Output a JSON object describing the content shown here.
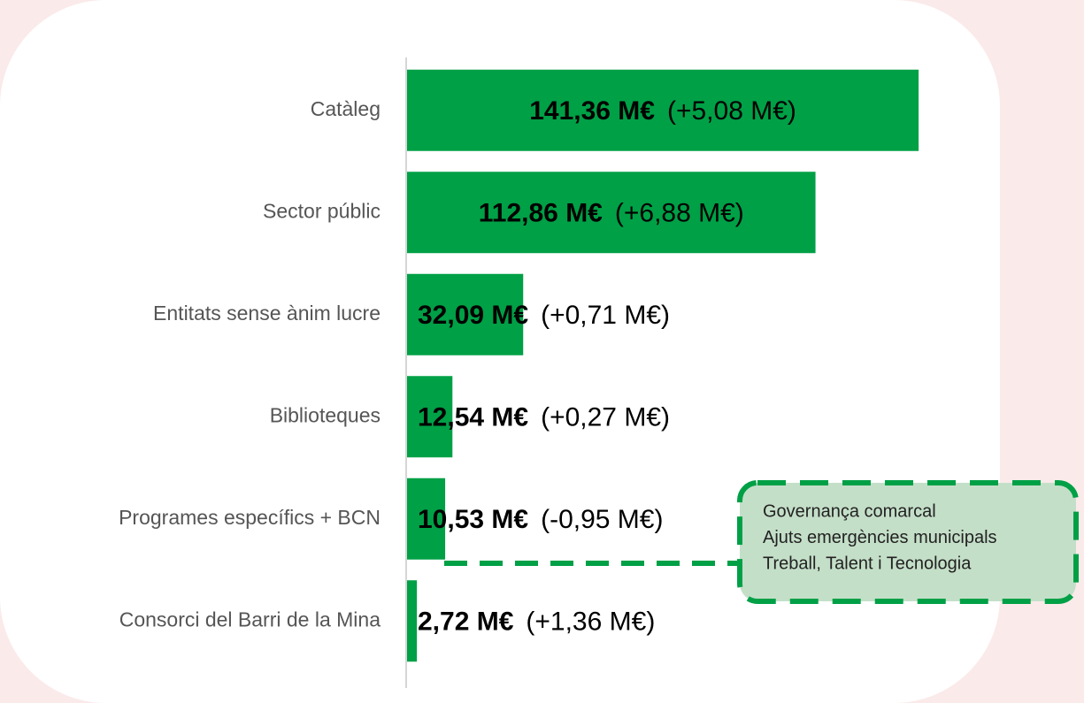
{
  "chart_data": {
    "type": "barh",
    "categories": [
      "Catàleg",
      "Sector públic",
      "Entitats sense ànim lucre",
      "Biblioteques",
      "Programes específics + BCN",
      "Consorci del Barri de la Mina"
    ],
    "values": [
      141.36,
      112.86,
      32.09,
      12.54,
      10.53,
      2.72
    ],
    "value_labels": [
      "141,36 M€",
      "112,86 M€",
      "32,09 M€",
      "12,54 M€",
      "10,53 M€",
      "2,72 M€"
    ],
    "change_labels": [
      "(+5,08 M€)",
      "(+6,88 M€)",
      "(+0,71 M€)",
      "(+0,27 M€)",
      "(-0,95 M€)",
      "(+1,36 M€)"
    ],
    "color": "#00a046",
    "xlim": [
      0,
      145
    ],
    "annotation": {
      "lines": [
        "Governança comarcal",
        "Ajuts emergències municipals",
        "Treball, Talent i Tecnologia"
      ]
    }
  }
}
